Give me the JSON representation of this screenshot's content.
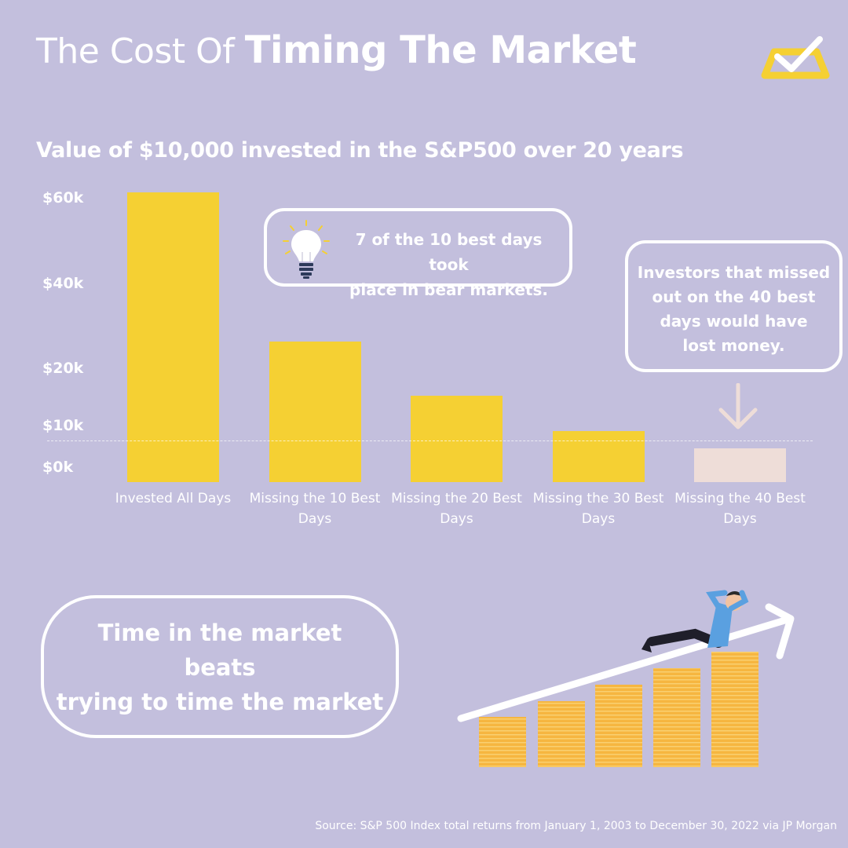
{
  "header": {
    "title_light": "The Cost Of",
    "title_bold": "Timing The Market",
    "logo_icon": "checkmark-badge-icon"
  },
  "chart_data": {
    "type": "bar",
    "title": "Value of $10,000 invested in the S&P500 over 20 years",
    "categories": [
      [
        "Invested All Days"
      ],
      [
        "Missing the 10 Best",
        "Days"
      ],
      [
        "Missing the 20 Best",
        "Days"
      ],
      [
        "Missing the 30 Best",
        "Days"
      ],
      [
        "Missing the 40 Best",
        "Days"
      ]
    ],
    "values": [
      64844,
      29708,
      17826,
      11701,
      8048
    ],
    "bar_colors": [
      "#f5d033",
      "#f5d033",
      "#f5d033",
      "#f5d033",
      "#eeddd8"
    ],
    "y_ticks": [
      {
        "value": 60000,
        "label": "$60k"
      },
      {
        "value": 40000,
        "label": "$40k"
      },
      {
        "value": 20000,
        "label": "$20k"
      },
      {
        "value": 10000,
        "label": "$10k"
      },
      {
        "value": 0,
        "label": "$0k"
      }
    ],
    "reference_line": 10000,
    "ylim": [
      0,
      66000
    ],
    "grid": false
  },
  "callouts": {
    "bear_markets": {
      "icon": "lightbulb-icon",
      "lines": [
        "7 of the 10 best days took",
        "place in bear markets."
      ]
    },
    "lost_money": {
      "lines": [
        "Investors that missed",
        "out on the 40 best",
        "days would have",
        "lost money."
      ],
      "arrow_icon": "down-arrow-icon"
    },
    "time_in_market": {
      "lines": [
        "Time in the market",
        "beats",
        "trying to time the market"
      ]
    }
  },
  "illustration": {
    "name": "relaxing-investor-on-coin-stacks-illustration"
  },
  "source": "Source: S&P 500 Index total returns from January 1, 2003 to December 30, 2022 via JP Morgan",
  "colors": {
    "background": "#c3bfdd",
    "accent": "#f5d033",
    "muted_bar": "#eeddd8",
    "text": "#ffffff"
  }
}
